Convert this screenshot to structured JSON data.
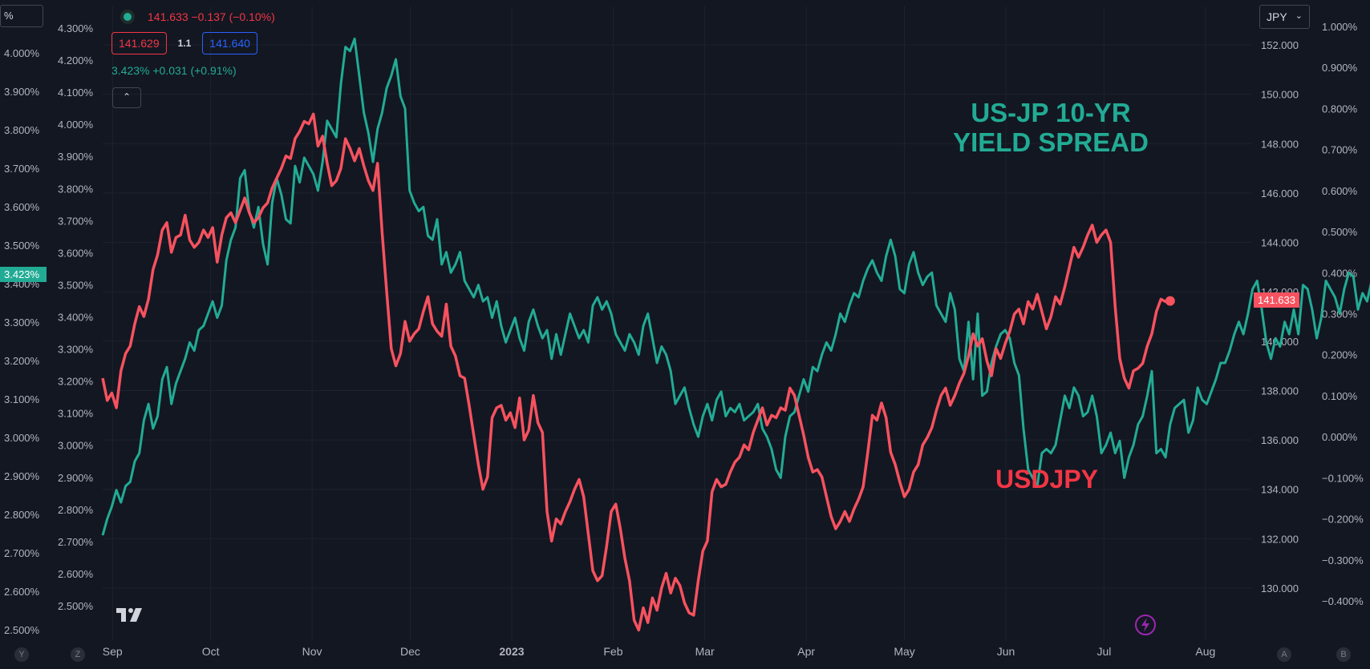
{
  "chart_data": {
    "type": "line",
    "x_labels": [
      "Sep",
      "Oct",
      "Nov",
      "Dec",
      "2023",
      "Feb",
      "Mar",
      "Apr",
      "May",
      "Jun",
      "Jul",
      "Aug"
    ],
    "x_label_bold": "2023",
    "x_start": "2022-08-29",
    "x_end": "2023-08-15",
    "x_ticks": [
      "2022-09-01",
      "2022-10-01",
      "2022-11-01",
      "2022-12-01",
      "2023-01-01",
      "2023-02-01",
      "2023-03-01",
      "2023-04-01",
      "2023-05-01",
      "2023-06-01",
      "2023-07-01",
      "2023-08-01"
    ],
    "left_axis": {
      "labels": [
        "4.000%",
        "3.900%",
        "3.800%",
        "3.700%",
        "3.600%",
        "3.500%",
        "3.400%",
        "3.300%",
        "3.200%",
        "3.100%",
        "3.000%",
        "2.900%",
        "2.800%",
        "2.700%",
        "2.600%",
        "2.500%"
      ],
      "values": [
        4.0,
        3.9,
        3.8,
        3.7,
        3.6,
        3.5,
        3.4,
        3.3,
        3.2,
        3.1,
        3.0,
        2.9,
        2.8,
        2.7,
        2.6,
        2.5
      ],
      "current_label": "3.423%",
      "current_value": 3.423,
      "unit_box": "%"
    },
    "mid_axis": {
      "labels": [
        "4.300%",
        "4.200%",
        "4.100%",
        "4.000%",
        "3.900%",
        "3.800%",
        "3.700%",
        "3.600%",
        "3.500%",
        "3.400%",
        "3.300%",
        "3.200%",
        "3.100%",
        "3.000%",
        "2.900%",
        "2.800%",
        "2.700%",
        "2.600%",
        "2.500%"
      ],
      "values": [
        4.3,
        4.2,
        4.1,
        4.0,
        3.9,
        3.8,
        3.7,
        3.6,
        3.5,
        3.4,
        3.3,
        3.2,
        3.1,
        3.0,
        2.9,
        2.8,
        2.7,
        2.6,
        2.5
      ]
    },
    "right_axis": {
      "labels": [
        "152.000",
        "150.000",
        "148.000",
        "146.000",
        "144.000",
        "142.000",
        "140.000",
        "138.000",
        "136.000",
        "134.000",
        "132.000",
        "130.000"
      ],
      "values": [
        152,
        150,
        148,
        146,
        144,
        142,
        140,
        138,
        136,
        134,
        132,
        130
      ],
      "currency": "JPY",
      "current_label": "141.633",
      "current_value": 141.633
    },
    "far_right_axis": {
      "labels": [
        "1.000%",
        "0.900%",
        "0.800%",
        "0.700%",
        "0.600%",
        "0.500%",
        "0.400%",
        "0.300%",
        "0.200%",
        "0.100%",
        "0.000%",
        "−0.100%",
        "−0.200%",
        "−0.300%",
        "−0.400%"
      ],
      "values": [
        1.0,
        0.9,
        0.8,
        0.7,
        0.6,
        0.5,
        0.4,
        0.3,
        0.2,
        0.1,
        0.0,
        -0.1,
        -0.2,
        -0.3,
        -0.4
      ]
    },
    "series": [
      {
        "name": "US-JP 10-YR YIELD SPREAD",
        "axis": "far_right",
        "color": "#22ab94",
        "start": "2022-08-29",
        "step_days": 1.4,
        "values": [
          -0.24,
          -0.2,
          -0.17,
          -0.13,
          -0.16,
          -0.12,
          -0.11,
          -0.06,
          -0.04,
          0.04,
          0.08,
          0.02,
          0.05,
          0.14,
          0.17,
          0.08,
          0.13,
          0.16,
          0.19,
          0.23,
          0.21,
          0.26,
          0.27,
          0.3,
          0.33,
          0.29,
          0.32,
          0.43,
          0.48,
          0.51,
          0.63,
          0.65,
          0.55,
          0.51,
          0.56,
          0.47,
          0.42,
          0.57,
          0.63,
          0.59,
          0.53,
          0.52,
          0.66,
          0.62,
          0.68,
          0.66,
          0.64,
          0.6,
          0.67,
          0.77,
          0.75,
          0.73,
          0.86,
          0.95,
          0.94,
          0.97,
          0.88,
          0.79,
          0.74,
          0.67,
          0.75,
          0.79,
          0.85,
          0.88,
          0.92,
          0.83,
          0.8,
          0.6,
          0.57,
          0.55,
          0.56,
          0.49,
          0.48,
          0.53,
          0.42,
          0.45,
          0.4,
          0.42,
          0.45,
          0.38,
          0.36,
          0.34,
          0.37,
          0.33,
          0.34,
          0.29,
          0.33,
          0.27,
          0.23,
          0.26,
          0.29,
          0.24,
          0.21,
          0.28,
          0.31,
          0.27,
          0.24,
          0.26,
          0.19,
          0.25,
          0.2,
          0.25,
          0.3,
          0.27,
          0.24,
          0.26,
          0.23,
          0.32,
          0.34,
          0.31,
          0.33,
          0.3,
          0.25,
          0.23,
          0.21,
          0.25,
          0.23,
          0.2,
          0.27,
          0.3,
          0.24,
          0.18,
          0.22,
          0.2,
          0.16,
          0.08,
          0.1,
          0.12,
          0.07,
          0.03,
          0,
          0.05,
          0.08,
          0.04,
          0.09,
          0.11,
          0.05,
          0.07,
          0.06,
          0.08,
          0.04,
          0.05,
          0.06,
          0.08,
          0.02,
          0,
          -0.03,
          -0.08,
          -0.1,
          0.0,
          0.05,
          0.06,
          0.1,
          0.14,
          0.11,
          0.17,
          0.16,
          0.2,
          0.23,
          0.21,
          0.25,
          0.3,
          0.28,
          0.32,
          0.35,
          0.34,
          0.38,
          0.41,
          0.43,
          0.4,
          0.38,
          0.44,
          0.48,
          0.44,
          0.36,
          0.35,
          0.42,
          0.45,
          0.4,
          0.37,
          0.39,
          0.4,
          0.32,
          0.3,
          0.28,
          0.35,
          0.31,
          0.19,
          0.16,
          0.28,
          0.14,
          0.3,
          0.1,
          0.11,
          0.18,
          0.22,
          0.25,
          0.26,
          0.24,
          0.18,
          0.15,
          0.02,
          -0.08,
          -0.1,
          -0.12,
          -0.04,
          -0.03,
          -0.04,
          -0.02,
          0.04,
          0.1,
          0.07,
          0.12,
          0.1,
          0.05,
          0.06,
          0.1,
          0.05,
          -0.04,
          -0.02,
          0.01,
          -0.04,
          -0.01,
          -0.1,
          -0.05,
          -0.02,
          0.03,
          0.05,
          0.1,
          0.16,
          -0.04,
          -0.03,
          -0.05,
          0.03,
          0.07,
          0.08,
          0.09,
          0.01,
          0.04,
          0.12,
          0.09,
          0.08,
          0.11,
          0.14,
          0.18,
          0.18,
          0.21,
          0.25,
          0.28,
          0.25,
          0.3,
          0.36,
          0.38,
          0.31,
          0.23,
          0.19,
          0.24,
          0.22,
          0.28,
          0.25,
          0.31,
          0.25,
          0.37,
          0.36,
          0.31,
          0.24,
          0.29,
          0.38,
          0.36,
          0.34,
          0.3,
          0.36,
          0.4,
          0.39,
          0.31,
          0.35,
          0.33,
          0.38,
          0.36,
          0.44,
          0.48,
          0.5,
          0.45,
          0.46,
          0.58,
          0.58,
          0.53,
          0.51,
          0.5,
          0.45,
          0.36,
          0.3,
          0.27,
          0.34,
          0.31,
          0.3,
          0.27,
          0.35,
          0.38
        ],
        "current_label": "3.423%  +0.031  (+0.91%)"
      },
      {
        "name": "USDJPY",
        "axis": "right",
        "color": "#f7525f",
        "start": "2022-08-29",
        "step_days": 1.4,
        "values": [
          138.5,
          137.6,
          137.9,
          137.3,
          138.8,
          139.5,
          139.8,
          140.7,
          141.4,
          141.0,
          141.7,
          142.9,
          143.5,
          144.5,
          144.8,
          143.6,
          144.2,
          144.3,
          145.1,
          144.1,
          143.8,
          144.0,
          144.5,
          144.2,
          144.6,
          143.2,
          144.3,
          145.0,
          145.2,
          144.8,
          145.3,
          145.8,
          145.2,
          144.8,
          145.0,
          145.4,
          145.6,
          146.2,
          146.6,
          147.0,
          147.5,
          147.4,
          148.2,
          148.5,
          148.9,
          148.8,
          149.2,
          147.9,
          148.3,
          147.2,
          146.3,
          146.5,
          147.0,
          148.2,
          147.8,
          147.3,
          147.8,
          147.1,
          146.5,
          146.1,
          147.2,
          144.4,
          142.0,
          139.7,
          139.0,
          139.5,
          140.8,
          140.0,
          140.3,
          140.5,
          141.2,
          141.8,
          140.7,
          140.4,
          140.2,
          141.5,
          139.8,
          139.4,
          138.6,
          138.5,
          137.4,
          136.2,
          135.0,
          134.0,
          134.5,
          136.9,
          137.3,
          137.4,
          136.8,
          137.1,
          136.5,
          137.7,
          136.0,
          136.4,
          137.8,
          136.7,
          136.3,
          133.1,
          131.9,
          132.8,
          132.6,
          133.1,
          133.5,
          134.0,
          134.4,
          133.7,
          132.2,
          130.7,
          130.3,
          130.5,
          131.7,
          133.1,
          133.4,
          132.4,
          131.2,
          130.3,
          128.7,
          128.3,
          129.2,
          128.6,
          129.6,
          129.1,
          130.0,
          130.6,
          129.8,
          130.4,
          130.1,
          129.4,
          129.0,
          128.9,
          130.3,
          131.5,
          131.9,
          133.9,
          134.4,
          134.1,
          134.2,
          134.7,
          135.1,
          135.3,
          135.8,
          135.6,
          136.3,
          136.8,
          137.3,
          136.6,
          137.0,
          136.9,
          137.3,
          137.2,
          138.1,
          137.8,
          137.0,
          136.2,
          135.3,
          134.7,
          134.8,
          134.5,
          133.7,
          132.9,
          132.4,
          132.7,
          133.1,
          132.7,
          133.2,
          133.6,
          134.1,
          135.5,
          137.0,
          136.8,
          137.5,
          136.9,
          135.5,
          135.0,
          134.3,
          133.7,
          134.0,
          134.7,
          135.0,
          135.8,
          136.1,
          136.5,
          137.2,
          137.8,
          138.1,
          137.4,
          137.8,
          138.3,
          138.7,
          139.4,
          140.3,
          139.8,
          140.1,
          139.2,
          138.6,
          139.7,
          139.3,
          139.9,
          140.4,
          141.1,
          141.3,
          140.7,
          141.6,
          141.3,
          141.9,
          141.2,
          140.5,
          141.0,
          141.8,
          141.5,
          142.2,
          143.0,
          143.8,
          143.4,
          143.8,
          144.3,
          144.7,
          144.0,
          144.3,
          144.5,
          144.0,
          141.4,
          139.3,
          138.5,
          138.1,
          138.8,
          138.9,
          139.1,
          139.8,
          140.3,
          141.2,
          141.7,
          141.6,
          141.63
        ],
        "current_label": "141.633  −0.137  (−0.10%)",
        "bid": "141.629",
        "spread": "1.1",
        "ask": "141.640"
      }
    ],
    "annotations": [
      {
        "text_line1": "US-JP 10-YR",
        "text_line2": "YIELD SPREAD",
        "color": "#22ab94",
        "placement": "top-right"
      },
      {
        "text": "USDJPY",
        "color": "#f23645",
        "placement": "bottom-right"
      }
    ]
  },
  "ui": {
    "corner_left": "Y",
    "corner_z": "Z",
    "corner_a": "A",
    "corner_b": "B",
    "collapse_glyph": "⌃",
    "chevron_glyph": "⌄"
  }
}
